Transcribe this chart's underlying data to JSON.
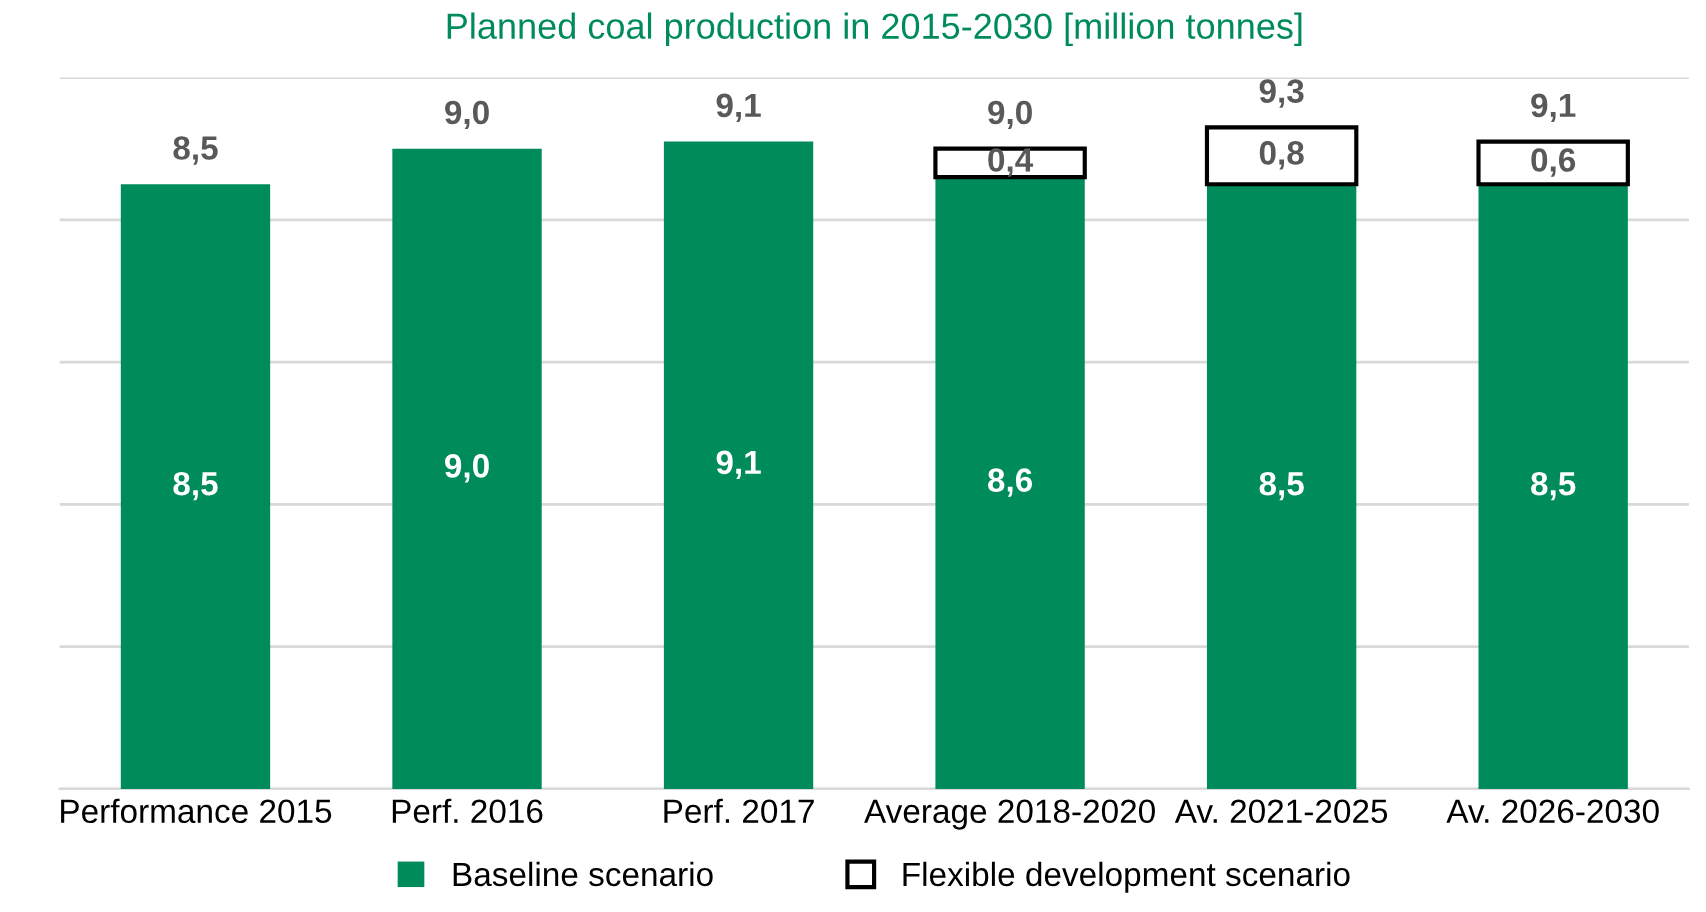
{
  "chart_data": {
    "type": "bar",
    "stacked": true,
    "title": "Planned coal production in 2015-2030 [million tonnes]",
    "categories": [
      "Performance 2015",
      "Perf. 2016",
      "Perf. 2017",
      "Average 2018-2020",
      "Av. 2021-2025",
      "Av. 2026-2030"
    ],
    "series": [
      {
        "name": "Baseline scenario",
        "color": "#008c5a",
        "values": [
          8.5,
          9.0,
          9.1,
          8.6,
          8.5,
          8.5
        ],
        "value_labels": [
          "8,5",
          "9,0",
          "9,1",
          "8,6",
          "8,5",
          "8,5"
        ]
      },
      {
        "name": "Flexible development scenario",
        "color": "#ffffff",
        "values": [
          null,
          null,
          null,
          0.4,
          0.8,
          0.6
        ],
        "value_labels": [
          null,
          null,
          null,
          "0,4",
          "0,8",
          "0,6"
        ]
      }
    ],
    "totals": [
      "8,5",
      "9,0",
      "9,1",
      "9,0",
      "9,3",
      "9,1"
    ],
    "ylim": [
      0,
      10
    ],
    "yticks": [
      {
        "value": 0,
        "label": null
      },
      {
        "value": 2,
        "label": null
      },
      {
        "value": 4,
        "label": null
      },
      {
        "value": 6,
        "label": null
      },
      {
        "value": 8,
        "label": null
      },
      {
        "value": 10,
        "label": null
      }
    ],
    "grid": "y",
    "legend": "bottom",
    "tick_labels": "x"
  }
}
